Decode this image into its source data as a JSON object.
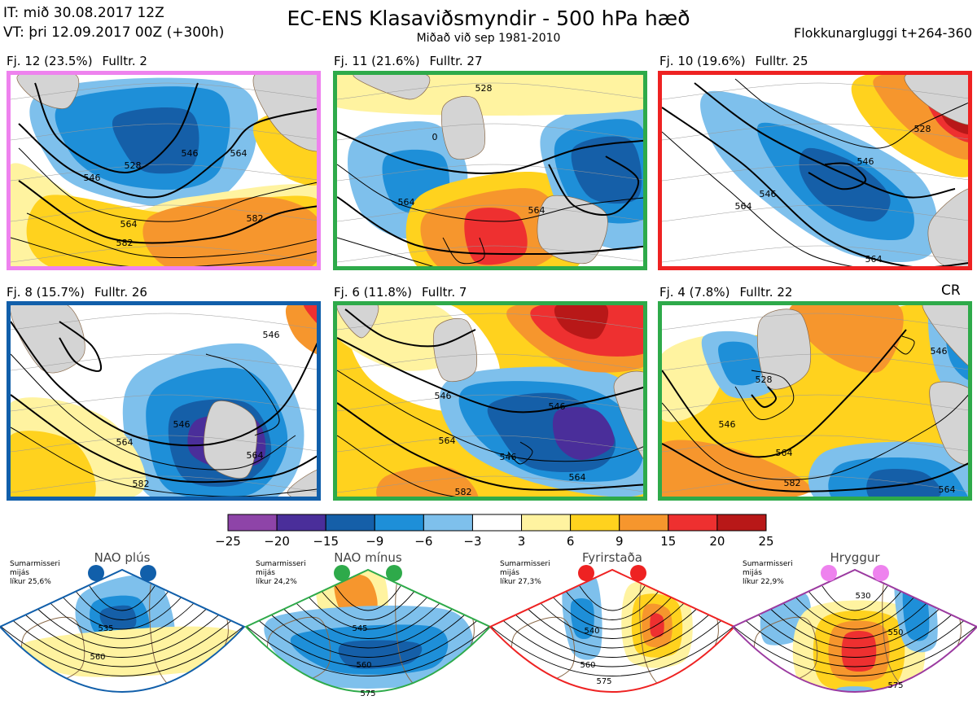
{
  "header": {
    "it_line": "IT: mið 30.08.2017 12Z",
    "vt_line": "VT: þri 12.09.2017 00Z  (+300h)",
    "title": "EC-ENS Klasaviðsmyndir - 500 hPa hæð",
    "subtitle": "Miðað við sep 1981-2010",
    "window": "Flokkunargluggi t+264-360"
  },
  "chart_data": {
    "type": "heatmap",
    "title": "EC-ENS Klasaviðsmyndir - 500 hPa hæð",
    "subtitle": "Miðað við sep 1981-2010",
    "clusters": [
      {
        "label": "Fj. 12 (23.5%)",
        "rep": "Fulltr. 2",
        "members": 12,
        "percent": 23.5,
        "representative": 2,
        "border_color": "#ee82ee",
        "contours": [
          "546",
          "564",
          "528",
          "582",
          "546"
        ]
      },
      {
        "label": "Fj. 11 (21.6%)",
        "rep": "Fulltr. 27",
        "members": 11,
        "percent": 21.6,
        "representative": 27,
        "border_color": "#2eaa4a",
        "contours": [
          "528",
          "564",
          "564",
          "0"
        ]
      },
      {
        "label": "Fj. 10 (19.6%)",
        "rep": "Fulltr. 25",
        "members": 10,
        "percent": 19.6,
        "representative": 25,
        "border_color": "#ee2222",
        "contours": [
          "546",
          "564",
          "564",
          "528"
        ]
      },
      {
        "label": "Fj. 8 (15.7%)",
        "rep": "Fulltr. 26",
        "members": 8,
        "percent": 15.7,
        "representative": 26,
        "border_color": "#115faa",
        "contours": [
          "546",
          "564",
          "582",
          "546",
          "564"
        ]
      },
      {
        "label": "Fj. 6 (11.8%)",
        "rep": "Fulltr. 7",
        "members": 6,
        "percent": 11.8,
        "representative": 7,
        "border_color": "#2eaa4a",
        "contours": [
          "546",
          "564",
          "582",
          "546"
        ]
      },
      {
        "label": "Fj. 4 (7.8%)",
        "rep": "Fulltr. 22",
        "members": 4,
        "percent": 7.8,
        "representative": 22,
        "border_color": "#2eaa4a",
        "contours": [
          "546",
          "564",
          "582",
          "528",
          "546"
        ],
        "tag": "CR"
      }
    ],
    "colorbar": {
      "bounds": [
        -25,
        -20,
        -15,
        -9,
        -6,
        -3,
        3,
        6,
        9,
        15,
        20,
        25
      ],
      "tick_labels": [
        "−25",
        "−20",
        "−15",
        "−9",
        "−6",
        "−3",
        "3",
        "6",
        "9",
        "15",
        "20",
        "25"
      ],
      "colors": [
        "#8e44a8",
        "#4a2e9a",
        "#155fa8",
        "#1e8fd8",
        "#7ec0ec",
        "#ffffff",
        "#fff3a0",
        "#ffd21e",
        "#f6962d",
        "#ee3030",
        "#b81818"
      ]
    },
    "regimes": [
      {
        "name": "NAO plús",
        "note_line1": "Sumarmisseri",
        "note_line2": "mijás",
        "note_line3": "líkur 25,6%",
        "likelihood_percent": 25.6,
        "color": "#115faa",
        "contours": [
          "535",
          "560"
        ]
      },
      {
        "name": "NAO mínus",
        "note_line1": "Sumarmisseri",
        "note_line2": "mijás",
        "note_line3": "líkur 24,2%",
        "likelihood_percent": 24.2,
        "color": "#2eaa4a",
        "contours": [
          "545",
          "560",
          "575"
        ]
      },
      {
        "name": "Fyrirstaða",
        "note_line1": "Sumarmisseri",
        "note_line2": "mijás",
        "note_line3": "líkur 27,3%",
        "likelihood_percent": 27.3,
        "color": "#ee2222",
        "contours": [
          "540",
          "560",
          "575"
        ]
      },
      {
        "name": "Hryggur",
        "note_line1": "Sumarmisseri",
        "note_line2": "mijás",
        "note_line3": "líkur 22,9%",
        "likelihood_percent": 22.9,
        "color": "#9b3aa0",
        "dot_color": "#ee82ee",
        "contours": [
          "530",
          "550",
          "575"
        ]
      }
    ]
  }
}
